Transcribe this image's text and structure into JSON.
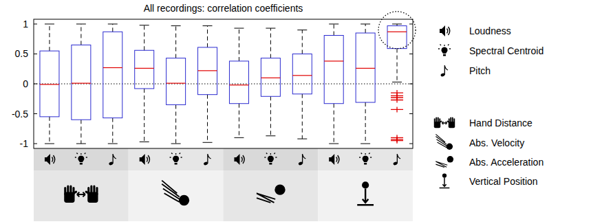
{
  "chart_data": {
    "type": "box",
    "title": "All recordings: correlation coefficients",
    "categories": [
      null,
      null,
      null,
      null,
      null,
      null,
      null,
      null,
      null,
      null,
      null,
      null
    ],
    "boxes": [
      {
        "whisker_low": -1,
        "q1": -0.55,
        "median": -0.01,
        "q3": 0.55,
        "whisker_high": 1,
        "outliers": []
      },
      {
        "whisker_low": -1,
        "q1": -0.6,
        "median": 0.01,
        "q3": 0.65,
        "whisker_high": 1,
        "outliers": []
      },
      {
        "whisker_low": -1,
        "q1": -0.57,
        "median": 0.27,
        "q3": 0.87,
        "whisker_high": 1,
        "outliers": []
      },
      {
        "whisker_low": -0.97,
        "q1": -0.08,
        "median": 0.26,
        "q3": 0.56,
        "whisker_high": 0.98,
        "outliers": []
      },
      {
        "whisker_low": -1,
        "q1": -0.35,
        "median": 0.01,
        "q3": 0.43,
        "whisker_high": 0.97,
        "outliers": []
      },
      {
        "whisker_low": -0.98,
        "q1": -0.18,
        "median": 0.22,
        "q3": 0.61,
        "whisker_high": 0.97,
        "outliers": []
      },
      {
        "whisker_low": -0.9,
        "q1": -0.33,
        "median": -0.02,
        "q3": 0.38,
        "whisker_high": 0.93,
        "outliers": []
      },
      {
        "whisker_low": -0.87,
        "q1": -0.21,
        "median": 0.1,
        "q3": 0.43,
        "whisker_high": 0.93,
        "outliers": []
      },
      {
        "whisker_low": -0.92,
        "q1": -0.17,
        "median": 0.14,
        "q3": 0.5,
        "whisker_high": 0.9,
        "outliers": []
      },
      {
        "whisker_low": -1,
        "q1": -0.33,
        "median": 0.38,
        "q3": 0.81,
        "whisker_high": 1,
        "outliers": []
      },
      {
        "whisker_low": -1,
        "q1": -0.31,
        "median": 0.26,
        "q3": 0.85,
        "whisker_high": 1,
        "outliers": []
      },
      {
        "whisker_low": 0.03,
        "q1": 0.59,
        "median": 0.87,
        "q3": 0.97,
        "whisker_high": 1,
        "outliers": [
          -0.15,
          -0.2,
          -0.23,
          -0.27,
          -0.43,
          -0.9,
          -0.93,
          -0.95
        ]
      }
    ],
    "ylim": [
      -1.08,
      1.08
    ],
    "yticks": [
      -1,
      -0.5,
      0,
      0.5,
      1
    ],
    "zero_line": 0,
    "highlighted": [
      11
    ],
    "legend_items": [
      "Loudness",
      "Spectral Centroid",
      "Pitch",
      "Hand Distance",
      "Abs. Velocity",
      "Abs. Acceleration",
      "Vertical Position"
    ]
  }
}
